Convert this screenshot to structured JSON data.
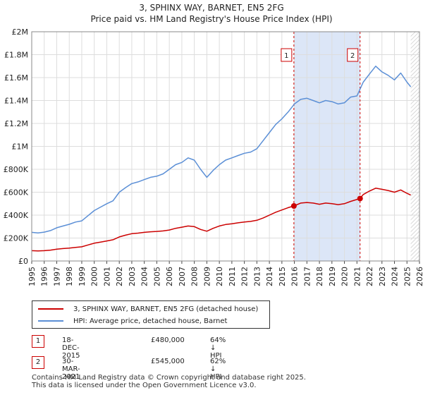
{
  "title_line1": "3, SPHINX WAY, BARNET, EN5 2FG",
  "title_line2": "Price paid vs. HM Land Registry's House Price Index (HPI)",
  "legend": {
    "series1_label": "3, SPHINX WAY, BARNET, EN5 2FG (detached house)",
    "series2_label": "HPI: Average price, detached house, Barnet"
  },
  "sales": [
    {
      "num": "1",
      "date": "18-DEC-2015",
      "price": "£480,000",
      "hpi": "64% ↓ HPI"
    },
    {
      "num": "2",
      "date": "30-MAR-2021",
      "price": "£545,000",
      "hpi": "62% ↓ HPI"
    }
  ],
  "footer": {
    "line1": "Contains HM Land Registry data © Crown copyright and database right 2025.",
    "line2": "This data is licensed under the Open Government Licence v3.0."
  },
  "colors": {
    "property": "#cc0000",
    "hpi": "#5b8fd6",
    "highlight": "#dce6f7",
    "grid": "#dddddd"
  },
  "chart_data": {
    "type": "line",
    "xlim": [
      1995,
      2026
    ],
    "ylim": [
      0,
      2000000
    ],
    "yticks": [
      {
        "value": 0,
        "label": "£0"
      },
      {
        "value": 200000,
        "label": "£200K"
      },
      {
        "value": 400000,
        "label": "£400K"
      },
      {
        "value": 600000,
        "label": "£600K"
      },
      {
        "value": 800000,
        "label": "£800K"
      },
      {
        "value": 1000000,
        "label": "£1M"
      },
      {
        "value": 1200000,
        "label": "£1.2M"
      },
      {
        "value": 1400000,
        "label": "£1.4M"
      },
      {
        "value": 1600000,
        "label": "£1.6M"
      },
      {
        "value": 1800000,
        "label": "£1.8M"
      },
      {
        "value": 2000000,
        "label": "£2M"
      }
    ],
    "xticks": [
      "1995",
      "1996",
      "1997",
      "1998",
      "1999",
      "2000",
      "2001",
      "2002",
      "2003",
      "2004",
      "2005",
      "2006",
      "2007",
      "2008",
      "2009",
      "2010",
      "2011",
      "2012",
      "2013",
      "2014",
      "2015",
      "2016",
      "2017",
      "2018",
      "2019",
      "2020",
      "2021",
      "2022",
      "2023",
      "2024",
      "2025",
      "2026"
    ],
    "highlight_range": [
      2015.96,
      2021.25
    ],
    "future_start": 2025.3,
    "markers": [
      {
        "label": "1",
        "x": 2015.96,
        "y": 480000
      },
      {
        "label": "2",
        "x": 2021.25,
        "y": 545000
      }
    ],
    "series": [
      {
        "name": "HPI: Average price, detached house, Barnet",
        "x": [
          1995,
          1995.5,
          1996,
          1996.5,
          1997,
          1997.5,
          1998,
          1998.5,
          1999,
          1999.5,
          2000,
          2000.5,
          2001,
          2001.5,
          2002,
          2002.5,
          2003,
          2003.5,
          2004,
          2004.5,
          2005,
          2005.5,
          2006,
          2006.5,
          2007,
          2007.5,
          2008,
          2008.5,
          2009,
          2009.5,
          2010,
          2010.5,
          2011,
          2011.5,
          2012,
          2012.5,
          2013,
          2013.5,
          2014,
          2014.5,
          2015,
          2015.5,
          2016,
          2016.5,
          2017,
          2017.5,
          2018,
          2018.5,
          2019,
          2019.5,
          2020,
          2020.5,
          2021,
          2021.5,
          2022,
          2022.5,
          2023,
          2023.5,
          2024,
          2024.5,
          2025,
          2025.3
        ],
        "values": [
          250000,
          245000,
          252000,
          265000,
          290000,
          305000,
          320000,
          340000,
          350000,
          395000,
          440000,
          470000,
          500000,
          525000,
          600000,
          640000,
          675000,
          690000,
          710000,
          730000,
          740000,
          760000,
          800000,
          840000,
          860000,
          900000,
          880000,
          800000,
          730000,
          790000,
          840000,
          880000,
          900000,
          920000,
          940000,
          950000,
          980000,
          1050000,
          1120000,
          1190000,
          1240000,
          1300000,
          1370000,
          1410000,
          1420000,
          1400000,
          1380000,
          1400000,
          1390000,
          1370000,
          1380000,
          1430000,
          1440000,
          1560000,
          1630000,
          1700000,
          1650000,
          1620000,
          1580000,
          1640000,
          1560000,
          1520000
        ]
      },
      {
        "name": "3, SPHINX WAY, BARNET, EN5 2FG (detached house)",
        "x": [
          1995,
          1995.5,
          1996,
          1996.5,
          1997,
          1997.5,
          1998,
          1998.5,
          1999,
          1999.5,
          2000,
          2000.5,
          2001,
          2001.5,
          2002,
          2002.5,
          2003,
          2003.5,
          2004,
          2004.5,
          2005,
          2005.5,
          2006,
          2006.5,
          2007,
          2007.5,
          2008,
          2008.5,
          2009,
          2009.5,
          2010,
          2010.5,
          2011,
          2011.5,
          2012,
          2012.5,
          2013,
          2013.5,
          2014,
          2014.5,
          2015,
          2015.5,
          2015.96,
          2016.5,
          2017,
          2017.5,
          2018,
          2018.5,
          2019,
          2019.5,
          2020,
          2020.5,
          2021.25,
          2021.5,
          2022,
          2022.5,
          2023,
          2023.5,
          2024,
          2024.5,
          2025,
          2025.3
        ],
        "values": [
          90000,
          88000,
          90000,
          95000,
          103000,
          108000,
          112000,
          118000,
          124000,
          140000,
          155000,
          165000,
          175000,
          185000,
          210000,
          225000,
          238000,
          243000,
          250000,
          255000,
          258000,
          262000,
          270000,
          285000,
          295000,
          305000,
          300000,
          275000,
          260000,
          285000,
          305000,
          318000,
          325000,
          333000,
          340000,
          345000,
          355000,
          375000,
          400000,
          425000,
          445000,
          465000,
          480000,
          505000,
          510000,
          505000,
          495000,
          505000,
          500000,
          492000,
          500000,
          520000,
          545000,
          580000,
          610000,
          635000,
          625000,
          615000,
          600000,
          620000,
          590000,
          575000
        ]
      }
    ]
  }
}
